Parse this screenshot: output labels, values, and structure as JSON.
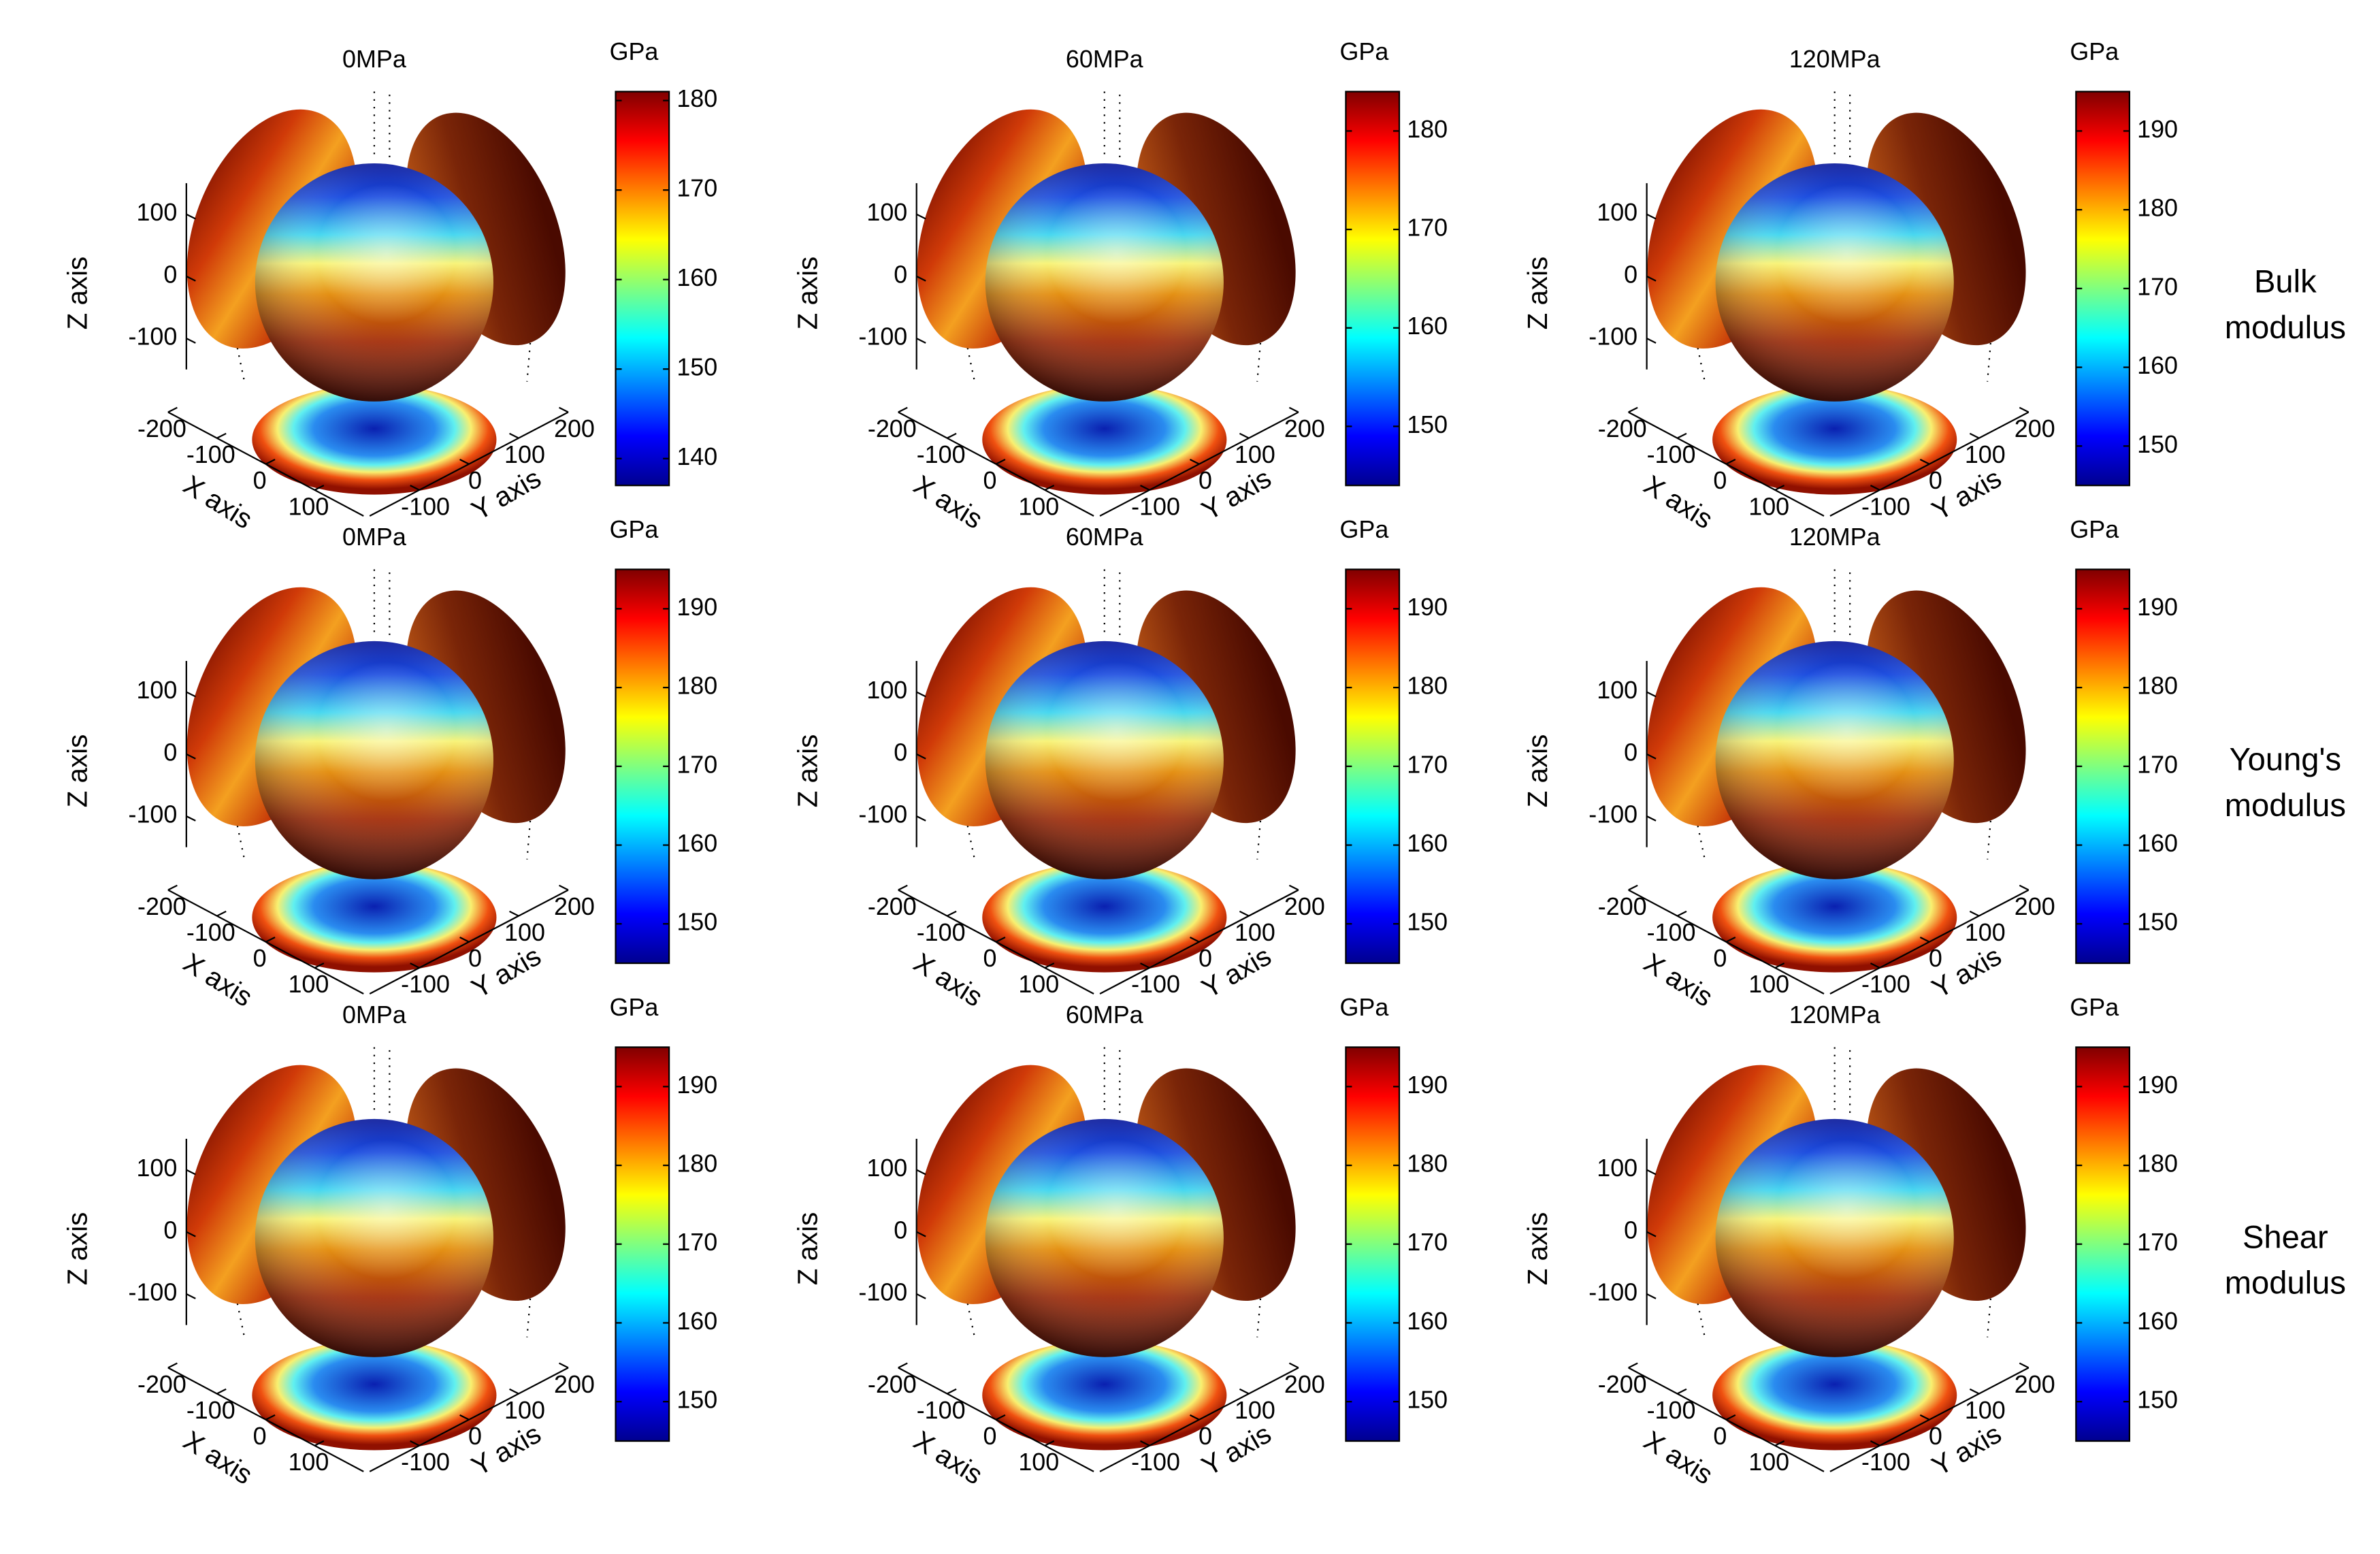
{
  "chart_data": [
    {
      "type": "surface3d",
      "title": "0MPa",
      "xlabel": "X axis",
      "ylabel": "Y axis",
      "zlabel": "Z axis",
      "xlim": [
        -200,
        200
      ],
      "ylim": [
        -200,
        200
      ],
      "zlim": [
        -150,
        150
      ],
      "xticks": [
        -200,
        -100,
        0,
        100
      ],
      "yticks": [
        -100,
        0,
        100,
        200
      ],
      "zticks": [
        -100,
        0,
        100
      ],
      "colormap": "jet",
      "colorbar": {
        "label": "GPa",
        "lim": [
          137,
          181
        ],
        "ticks": [
          140,
          150,
          160,
          170,
          180
        ]
      }
    },
    {
      "type": "surface3d",
      "title": "60MPa",
      "xlabel": "X axis",
      "ylabel": "Y axis",
      "zlabel": "Z axis",
      "xlim": [
        -200,
        200
      ],
      "ylim": [
        -200,
        200
      ],
      "zlim": [
        -150,
        150
      ],
      "xticks": [
        -200,
        -100,
        0,
        100
      ],
      "yticks": [
        -100,
        0,
        100,
        200
      ],
      "zticks": [
        -100,
        0,
        100
      ],
      "colormap": "jet",
      "colorbar": {
        "label": "GPa",
        "lim": [
          144,
          184
        ],
        "ticks": [
          150,
          160,
          170,
          180
        ]
      }
    },
    {
      "type": "surface3d",
      "title": "120MPa",
      "xlabel": "X axis",
      "ylabel": "Y axis",
      "zlabel": "Z axis",
      "xlim": [
        -200,
        200
      ],
      "ylim": [
        -200,
        200
      ],
      "zlim": [
        -150,
        150
      ],
      "xticks": [
        -200,
        -100,
        0,
        100
      ],
      "yticks": [
        -100,
        0,
        100,
        200
      ],
      "zticks": [
        -100,
        0,
        100
      ],
      "colormap": "jet",
      "colorbar": {
        "label": "GPa",
        "lim": [
          145,
          195
        ],
        "ticks": [
          150,
          160,
          170,
          180,
          190
        ]
      }
    },
    {
      "type": "surface3d",
      "title": "0MPa",
      "xlabel": "X axis",
      "ylabel": "Y axis",
      "zlabel": "Z axis",
      "xlim": [
        -200,
        200
      ],
      "ylim": [
        -200,
        200
      ],
      "zlim": [
        -150,
        150
      ],
      "xticks": [
        -200,
        -100,
        0,
        100
      ],
      "yticks": [
        -100,
        0,
        100,
        200
      ],
      "zticks": [
        -100,
        0,
        100
      ],
      "colormap": "jet",
      "colorbar": {
        "label": "GPa",
        "lim": [
          145,
          195
        ],
        "ticks": [
          150,
          160,
          170,
          180,
          190
        ]
      }
    },
    {
      "type": "surface3d",
      "title": "60MPa",
      "xlabel": "X axis",
      "ylabel": "Y axis",
      "zlabel": "Z axis",
      "xlim": [
        -200,
        200
      ],
      "ylim": [
        -200,
        200
      ],
      "zlim": [
        -150,
        150
      ],
      "xticks": [
        -200,
        -100,
        0,
        100
      ],
      "yticks": [
        -100,
        0,
        100,
        200
      ],
      "zticks": [
        -100,
        0,
        100
      ],
      "colormap": "jet",
      "colorbar": {
        "label": "GPa",
        "lim": [
          145,
          195
        ],
        "ticks": [
          150,
          160,
          170,
          180,
          190
        ]
      }
    },
    {
      "type": "surface3d",
      "title": "120MPa",
      "xlabel": "X axis",
      "ylabel": "Y axis",
      "zlabel": "Z axis",
      "xlim": [
        -200,
        200
      ],
      "ylim": [
        -200,
        200
      ],
      "zlim": [
        -150,
        150
      ],
      "xticks": [
        -200,
        -100,
        0,
        100
      ],
      "yticks": [
        -100,
        0,
        100,
        200
      ],
      "zticks": [
        -100,
        0,
        100
      ],
      "colormap": "jet",
      "colorbar": {
        "label": "GPa",
        "lim": [
          145,
          195
        ],
        "ticks": [
          150,
          160,
          170,
          180,
          190
        ]
      }
    },
    {
      "type": "surface3d",
      "title": "0MPa",
      "xlabel": "X axis",
      "ylabel": "Y axis",
      "zlabel": "Z axis",
      "xlim": [
        -200,
        200
      ],
      "ylim": [
        -200,
        200
      ],
      "zlim": [
        -150,
        150
      ],
      "xticks": [
        -200,
        -100,
        0,
        100
      ],
      "yticks": [
        -100,
        0,
        100,
        200
      ],
      "zticks": [
        -100,
        0,
        100
      ],
      "colormap": "jet",
      "colorbar": {
        "label": "GPa",
        "lim": [
          145,
          195
        ],
        "ticks": [
          150,
          160,
          170,
          180,
          190
        ]
      }
    },
    {
      "type": "surface3d",
      "title": "60MPa",
      "xlabel": "X axis",
      "ylabel": "Y axis",
      "zlabel": "Z axis",
      "xlim": [
        -200,
        200
      ],
      "ylim": [
        -200,
        200
      ],
      "zlim": [
        -150,
        150
      ],
      "xticks": [
        -200,
        -100,
        0,
        100
      ],
      "yticks": [
        -100,
        0,
        100,
        200
      ],
      "zticks": [
        -100,
        0,
        100
      ],
      "colormap": "jet",
      "colorbar": {
        "label": "GPa",
        "lim": [
          145,
          195
        ],
        "ticks": [
          150,
          160,
          170,
          180,
          190
        ]
      }
    },
    {
      "type": "surface3d",
      "title": "120MPa",
      "xlabel": "X axis",
      "ylabel": "Y axis",
      "zlabel": "Z axis",
      "xlim": [
        -200,
        200
      ],
      "ylim": [
        -200,
        200
      ],
      "zlim": [
        -150,
        150
      ],
      "xticks": [
        -200,
        -100,
        0,
        100
      ],
      "yticks": [
        -100,
        0,
        100,
        200
      ],
      "zticks": [
        -100,
        0,
        100
      ],
      "colormap": "jet",
      "colorbar": {
        "label": "GPa",
        "lim": [
          145,
          195
        ],
        "ticks": [
          150,
          160,
          170,
          180,
          190
        ]
      }
    }
  ],
  "row_labels": [
    [
      "Bulk",
      "modulus"
    ],
    [
      "Young's",
      "modulus"
    ],
    [
      "Shear",
      "modulus"
    ]
  ]
}
